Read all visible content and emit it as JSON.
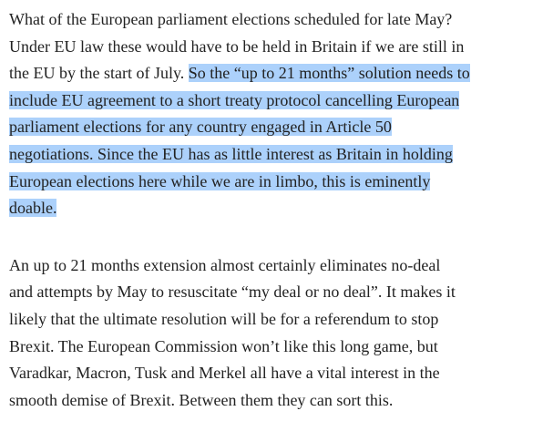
{
  "paragraphs": [
    {
      "lines": [
        [
          {
            "text": "What of the European parliament elections scheduled for late May?",
            "highlight": false
          }
        ],
        [
          {
            "text": "Under EU law these would have to be held in Britain if we are still in",
            "highlight": false
          }
        ],
        [
          {
            "text": "the EU by the start of July. ",
            "highlight": false
          },
          {
            "text": "So the “up to 21 months” solution needs to",
            "highlight": true
          }
        ],
        [
          {
            "text": "include EU agreement to a short treaty protocol cancelling European",
            "highlight": true
          }
        ],
        [
          {
            "text": "parliament elections for any country engaged in Article 50",
            "highlight": true
          }
        ],
        [
          {
            "text": "negotiations. Since the EU has as little interest as Britain in holding",
            "highlight": true
          }
        ],
        [
          {
            "text": "European elections here while we are in limbo, this is eminently",
            "highlight": true
          }
        ],
        [
          {
            "text": "doable.",
            "highlight": true
          }
        ]
      ]
    },
    {
      "lines": [
        [
          {
            "text": "An up to 21 months extension almost certainly eliminates no-deal",
            "highlight": false
          }
        ],
        [
          {
            "text": "and attempts by May to resuscitate “my deal or no deal”. It makes it",
            "highlight": false
          }
        ],
        [
          {
            "text": "likely that the ultimate resolution will be for a referendum to stop",
            "highlight": false
          }
        ],
        [
          {
            "text": "Brexit. The European Commission won’t like this long game, but",
            "highlight": false
          }
        ],
        [
          {
            "text": "Varadkar, Macron, Tusk and Merkel all have a vital interest in the",
            "highlight": false
          }
        ],
        [
          {
            "text": "smooth demise of Brexit. Between them they can sort this.",
            "highlight": false
          }
        ]
      ]
    }
  ]
}
